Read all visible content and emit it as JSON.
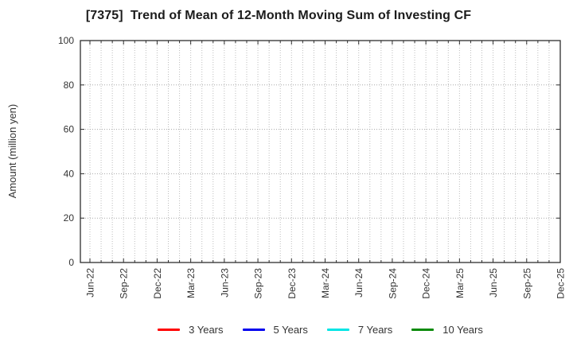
{
  "header": {
    "title": "[7375]  Trend of Mean of 12-Month Moving Sum of Investing CF"
  },
  "chart_data": {
    "type": "line",
    "title": "[7375]  Trend of Mean of 12-Month Moving Sum of Investing CF",
    "xlabel": "",
    "ylabel": "Amount (million yen)",
    "ylim": [
      0,
      100
    ],
    "yticks": [
      0,
      20,
      40,
      60,
      80,
      100
    ],
    "x_tick_labels": [
      "Jun-22",
      "Sep-22",
      "Dec-22",
      "Mar-23",
      "Jun-23",
      "Sep-23",
      "Dec-23",
      "Mar-24",
      "Jun-24",
      "Sep-24",
      "Dec-24",
      "Mar-25",
      "Jun-25",
      "Sep-25",
      "Dec-25"
    ],
    "x_months_total": 43,
    "x_major_interval_months": 3,
    "x_minor_interval_months": 1,
    "grid": {
      "visible": true,
      "style": "dotted",
      "minor_color": "#bdbdbd",
      "major_color": "#a8a8a8"
    },
    "axis_color": "#2e2e2e",
    "tick_label_color": "#333333",
    "legend_position": "bottom",
    "series": [
      {
        "name": "3 Years",
        "color": "#ff0000",
        "values": []
      },
      {
        "name": "5 Years",
        "color": "#0000ee",
        "values": []
      },
      {
        "name": "7 Years",
        "color": "#00e5e5",
        "values": []
      },
      {
        "name": "10 Years",
        "color": "#0a8a0a",
        "values": []
      }
    ]
  }
}
